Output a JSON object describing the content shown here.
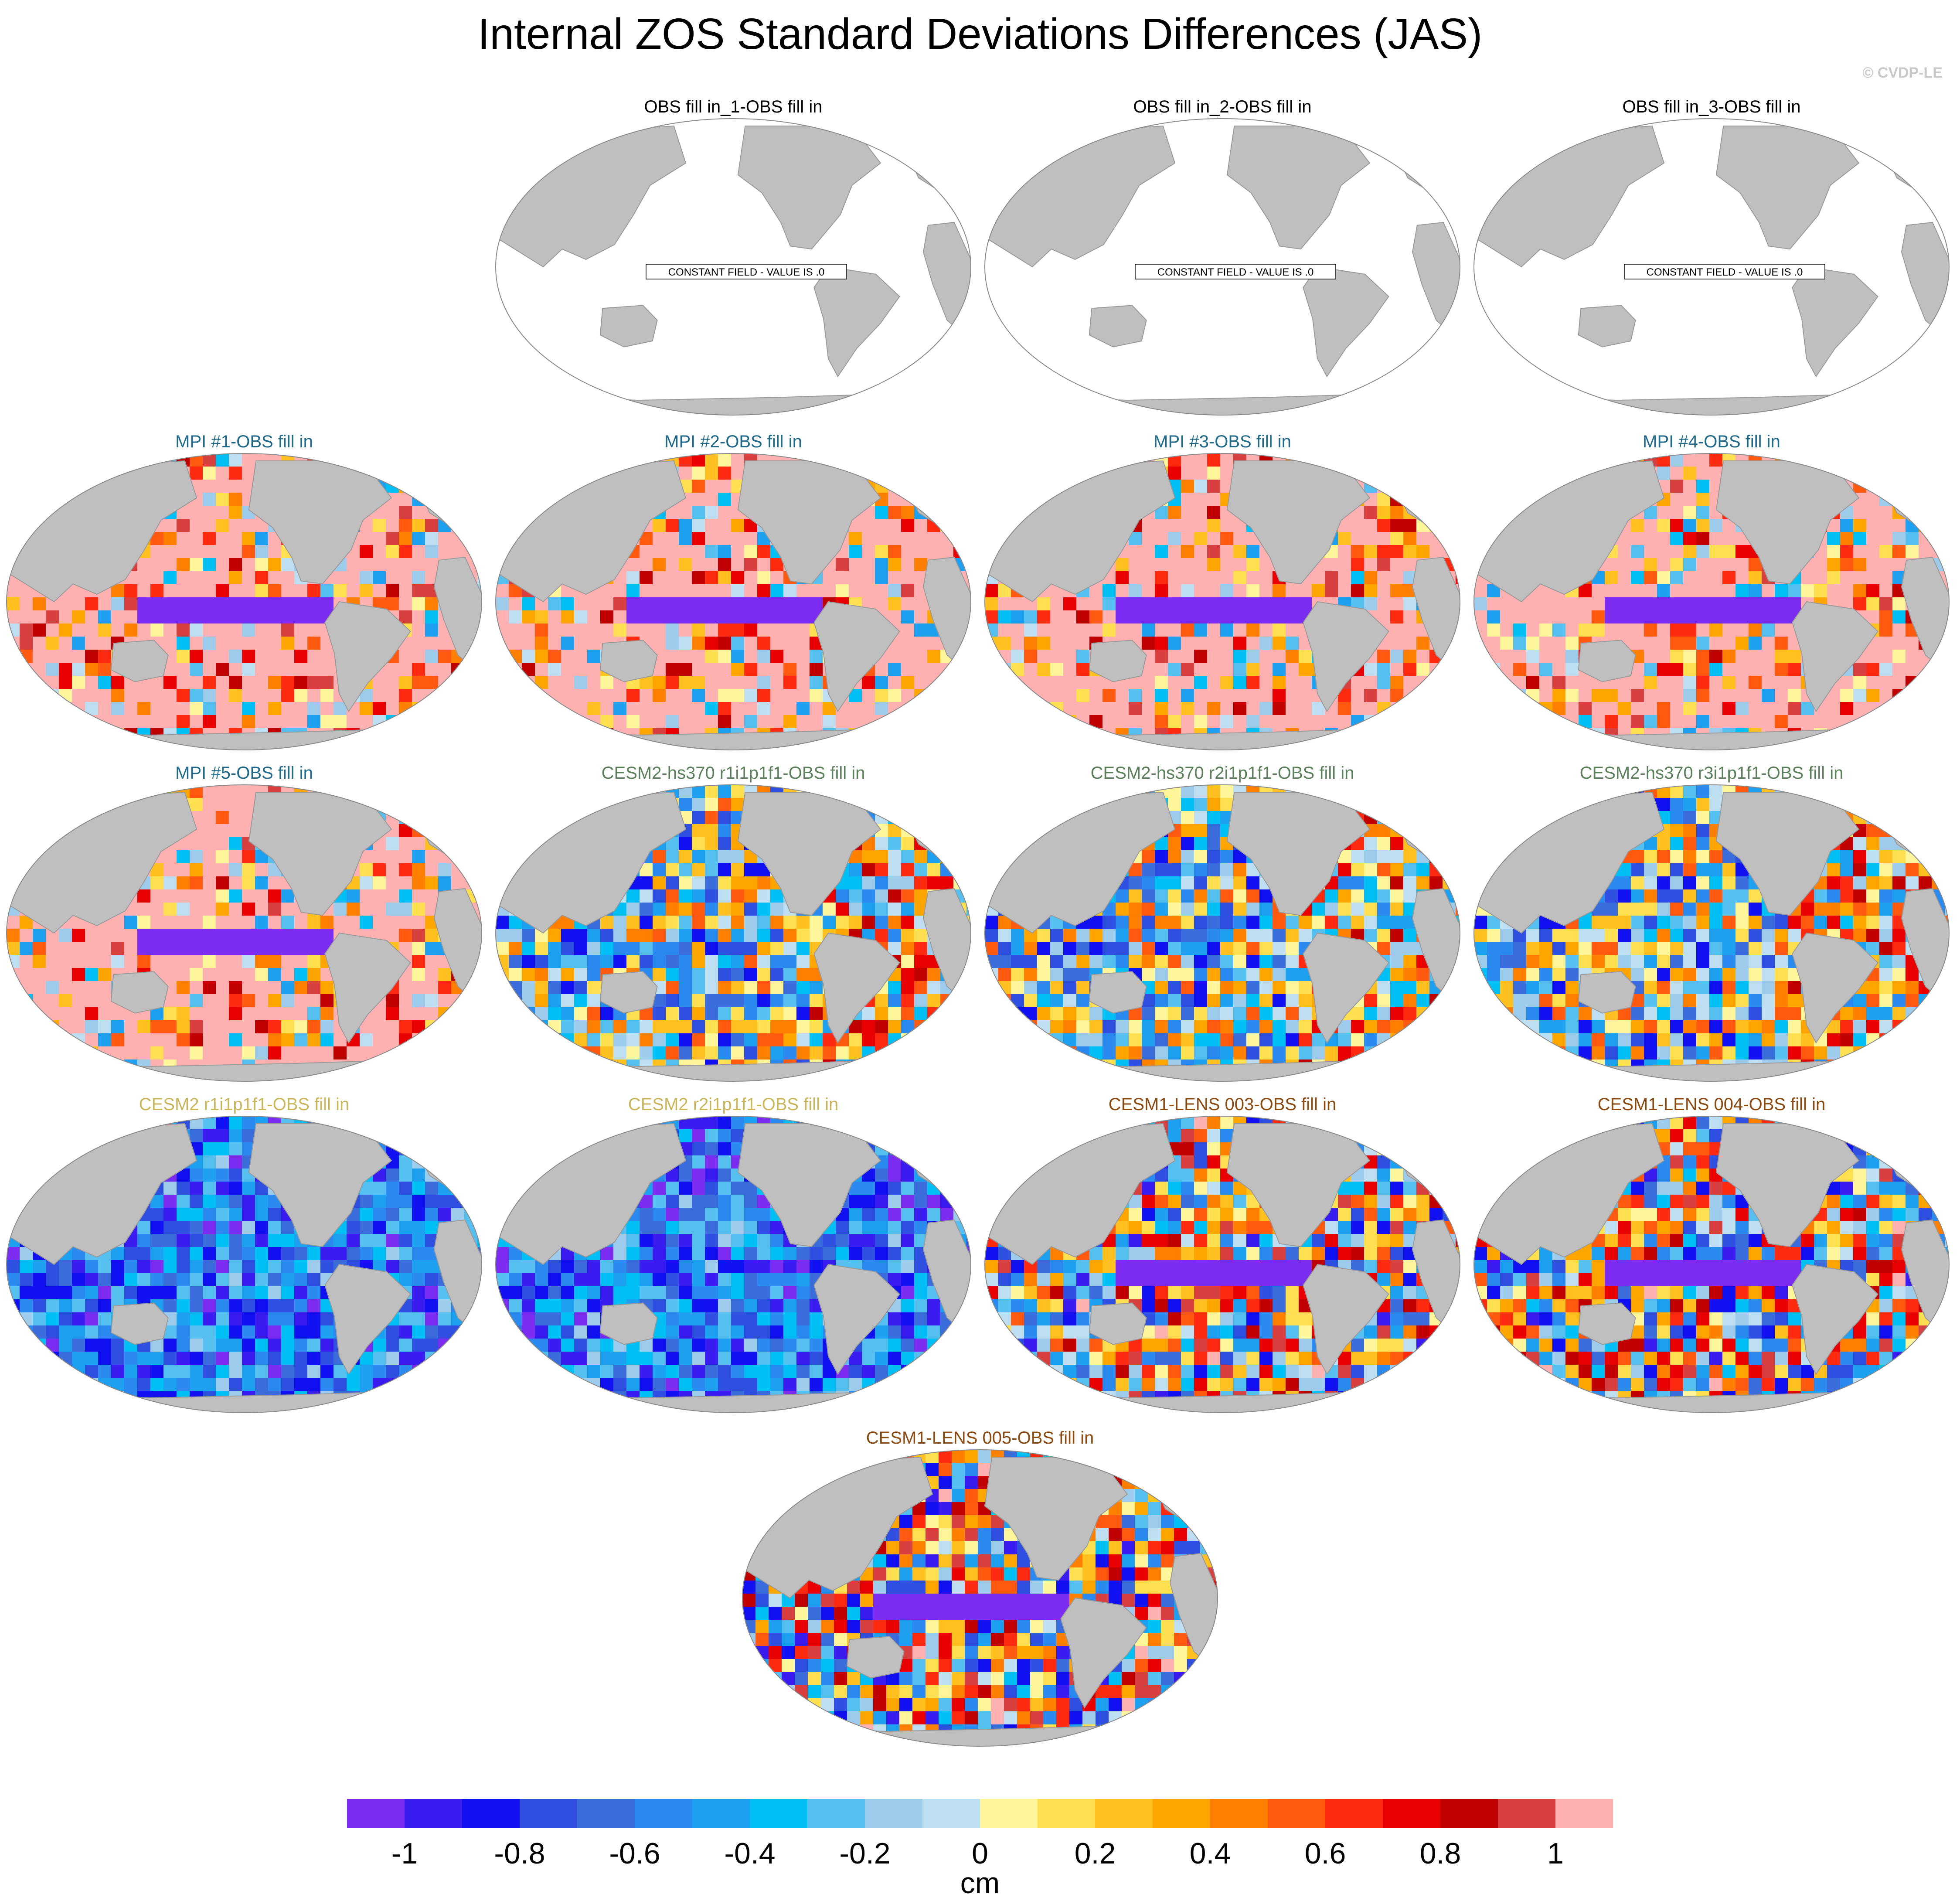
{
  "figure": {
    "title": "Internal ZOS Standard Deviations Differences (JAS)",
    "credit": "© CVDP-LE",
    "constant_field_label": "CONSTANT FIELD - VALUE IS .0"
  },
  "colors": {
    "land": "#bfbfbf",
    "ocean_blank": "#ffffff",
    "obs_title": "#000000",
    "mpi_title": "#1f6a8a",
    "cesm2hs_title": "#5b7f5b",
    "cesm2_title": "#c9b55a",
    "lens_title": "#8a4a10"
  },
  "panels": [
    {
      "title": "OBS fill in_1-OBS fill in",
      "group": "obs",
      "pattern": "constant"
    },
    {
      "title": "OBS fill in_2-OBS fill in",
      "group": "obs",
      "pattern": "constant"
    },
    {
      "title": "OBS fill in_3-OBS fill in",
      "group": "obs",
      "pattern": "constant"
    },
    {
      "title": "MPI #1-OBS fill in",
      "group": "mpi",
      "pattern": "mpi"
    },
    {
      "title": "MPI #2-OBS fill in",
      "group": "mpi",
      "pattern": "mpi"
    },
    {
      "title": "MPI #3-OBS fill in",
      "group": "mpi",
      "pattern": "mpi"
    },
    {
      "title": "MPI #4-OBS fill in",
      "group": "mpi",
      "pattern": "mpi"
    },
    {
      "title": "MPI #5-OBS fill in",
      "group": "mpi",
      "pattern": "mpi"
    },
    {
      "title": "CESM2-hs370 r1i1p1f1-OBS fill in",
      "group": "cesm2hs",
      "pattern": "mixed"
    },
    {
      "title": "CESM2-hs370 r2i1p1f1-OBS fill in",
      "group": "cesm2hs",
      "pattern": "mixed"
    },
    {
      "title": "CESM2-hs370 r3i1p1f1-OBS fill in",
      "group": "cesm2hs",
      "pattern": "mixed"
    },
    {
      "title": "CESM2 r1i1p1f1-OBS fill in",
      "group": "cesm2",
      "pattern": "blue"
    },
    {
      "title": "CESM2 r2i1p1f1-OBS fill in",
      "group": "cesm2",
      "pattern": "blue"
    },
    {
      "title": "CESM1-LENS 003-OBS fill in",
      "group": "lens",
      "pattern": "lens"
    },
    {
      "title": "CESM1-LENS 004-OBS fill in",
      "group": "lens",
      "pattern": "lens"
    },
    {
      "title": "CESM1-LENS 005-OBS fill in",
      "group": "lens",
      "pattern": "lens"
    }
  ],
  "colorbar": {
    "unit_label": "cm",
    "tick_labels": [
      "-1",
      "-0.8",
      "-0.6",
      "-0.4",
      "-0.2",
      "0",
      "0.2",
      "0.4",
      "0.6",
      "0.8",
      "1"
    ],
    "tick_values": [
      -1,
      -0.8,
      -0.6,
      -0.4,
      -0.2,
      0,
      0.2,
      0.4,
      0.6,
      0.8,
      1
    ],
    "boundaries": [
      -1.1,
      -1.0,
      -0.9,
      -0.8,
      -0.7,
      -0.6,
      -0.5,
      -0.4,
      -0.3,
      -0.2,
      -0.1,
      0.0,
      0.1,
      0.2,
      0.3,
      0.4,
      0.5,
      0.6,
      0.7,
      0.8,
      0.9,
      1.0,
      1.1
    ],
    "colors": [
      "#7b2cf0",
      "#3a1cf0",
      "#1010f0",
      "#2f4fe0",
      "#3a6cdc",
      "#2a8af0",
      "#1ea0f0",
      "#00bff5",
      "#55c0f0",
      "#9ccbec",
      "#bedff2",
      "#fff59a",
      "#ffe050",
      "#ffc020",
      "#ffa500",
      "#ff8000",
      "#ff5a10",
      "#ff2a10",
      "#e80000",
      "#c00000",
      "#d84040",
      "#ffb0b0"
    ]
  }
}
